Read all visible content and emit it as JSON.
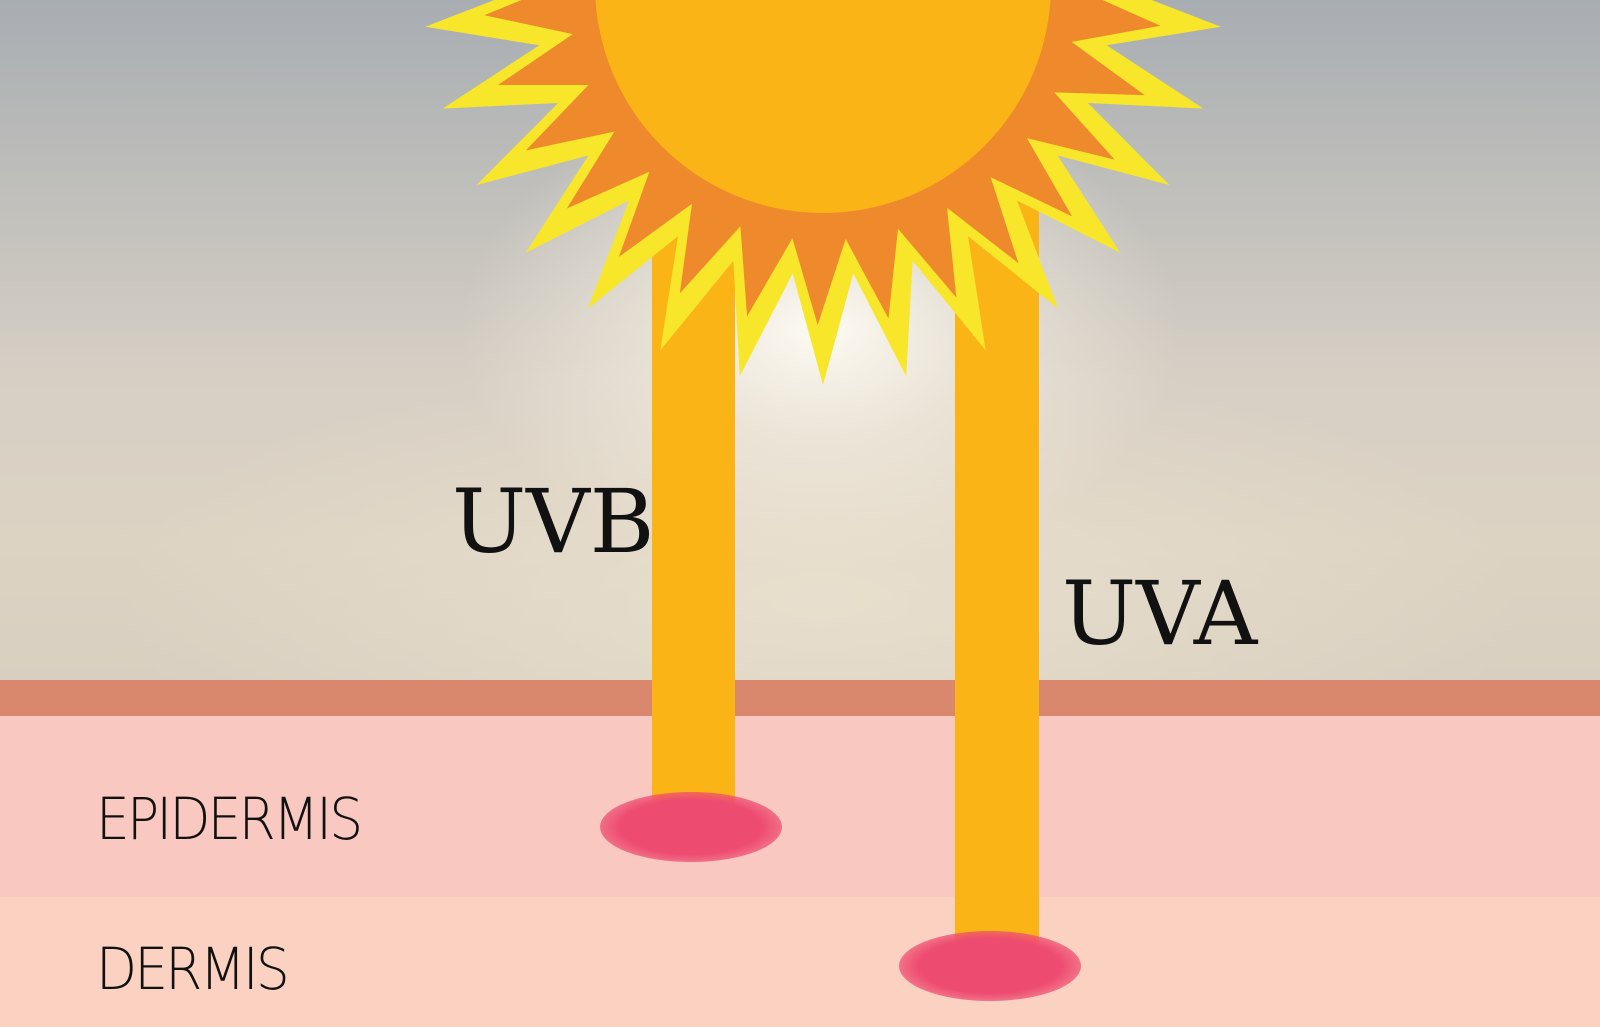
{
  "colors": {
    "ray": "#fbb416",
    "sun_core": "#fbb416",
    "sun_inner_rays": "#ee8a2c",
    "sun_outer_rays": "#f7e629",
    "absorption_spot": "#ee4b70",
    "skin_surface": "#d9876d",
    "epidermis": "#f9c8c0",
    "dermis": "#fbd2c2"
  },
  "rays": {
    "uvb_label": "UVB",
    "uva_label": "UVA"
  },
  "layers": {
    "epidermis_label": "EPIDERMIS",
    "dermis_label": "DERMIS"
  },
  "icons": {
    "sun": "sun-icon"
  }
}
